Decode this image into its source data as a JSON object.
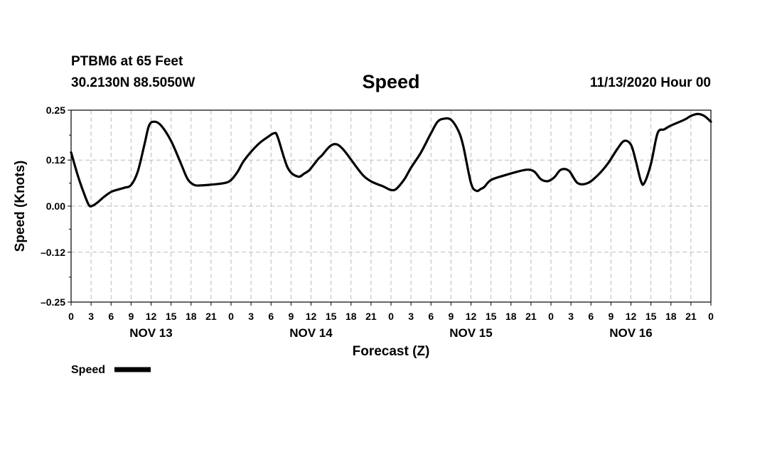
{
  "header": {
    "station": "PTBM6 at 65 Feet",
    "coords": "30.2130N 88.5050W",
    "title": "Speed",
    "date": "11/13/2020 Hour 00"
  },
  "chart_data": {
    "type": "line",
    "title": "Speed",
    "xlabel": "Forecast (Z)",
    "ylabel": "Speed (Knots)",
    "ylim": [
      -0.25,
      0.25
    ],
    "xlim": [
      0,
      96
    ],
    "yticks": [
      0.25,
      0.12,
      0.0,
      -0.12,
      -0.25
    ],
    "ytick_labels": [
      "0.25",
      "0.12",
      "0.00",
      "–0.12",
      "–0.25"
    ],
    "xticks_step": 3,
    "xtick_labels": [
      "0",
      "3",
      "6",
      "9",
      "12",
      "15",
      "18",
      "21",
      "0",
      "3",
      "6",
      "9",
      "12",
      "15",
      "18",
      "21",
      "0",
      "3",
      "6",
      "9",
      "12",
      "15",
      "18",
      "21",
      "0",
      "3",
      "6",
      "9",
      "12",
      "15",
      "18",
      "21",
      "0"
    ],
    "day_labels": [
      {
        "label": "NOV 13",
        "x": 12
      },
      {
        "label": "NOV 14",
        "x": 36
      },
      {
        "label": "NOV 15",
        "x": 60
      },
      {
        "label": "NOV 16",
        "x": 84
      }
    ],
    "grid": true,
    "legend": "bottom-left",
    "series": [
      {
        "name": "Speed",
        "color": "#000000",
        "x": [
          0,
          1,
          2,
          2.7,
          3.2,
          4,
          5,
          6,
          7,
          8,
          9,
          10,
          11,
          11.7,
          12.5,
          13.5,
          15,
          16.5,
          17.5,
          18.5,
          19.5,
          21,
          23,
          24,
          25,
          26,
          28,
          29.5,
          30.5,
          31,
          32.5,
          34,
          35,
          35.7,
          36.5,
          37.5,
          40,
          44,
          47,
          48,
          48.8,
          50,
          51,
          52.5,
          54,
          55,
          56,
          57,
          58,
          58.8,
          60,
          60.8,
          61.5,
          62,
          63,
          65,
          67,
          68.5,
          69.5,
          70.5,
          71.5,
          72.5,
          73.5,
          74.7,
          76,
          77.5,
          79,
          80.5,
          82,
          83,
          84,
          84.7,
          85.5,
          86,
          87,
          88,
          89,
          90,
          92,
          93,
          94,
          95,
          96
        ],
        "values": [
          0.14,
          0.08,
          0.03,
          0.002,
          0.001,
          0.01,
          0.025,
          0.037,
          0.043,
          0.048,
          0.055,
          0.09,
          0.16,
          0.21,
          0.22,
          0.21,
          0.17,
          0.11,
          0.07,
          0.055,
          0.054,
          0.056,
          0.06,
          0.068,
          0.09,
          0.12,
          0.16,
          0.18,
          0.19,
          0.18,
          0.1,
          0.077,
          0.085,
          0.093,
          0.11,
          0.13,
          0.16,
          0.077,
          0.05,
          0.042,
          0.045,
          0.07,
          0.1,
          0.14,
          0.19,
          0.22,
          0.228,
          0.225,
          0.2,
          0.16,
          0.06,
          0.04,
          0.045,
          0.05,
          0.068,
          0.08,
          0.09,
          0.095,
          0.09,
          0.07,
          0.065,
          0.075,
          0.095,
          0.092,
          0.06,
          0.06,
          0.08,
          0.11,
          0.15,
          0.17,
          0.16,
          0.12,
          0.065,
          0.06,
          0.11,
          0.19,
          0.2,
          0.21,
          0.225,
          0.235,
          0.24,
          0.235,
          0.22
        ]
      }
    ]
  }
}
